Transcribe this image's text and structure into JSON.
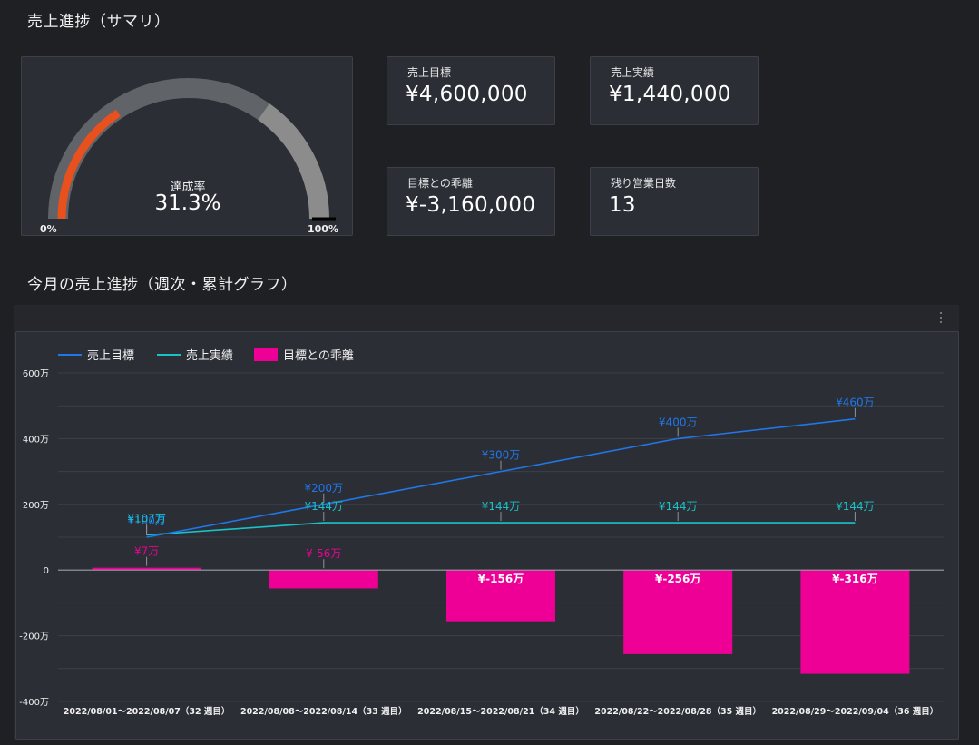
{
  "summary": {
    "title": "売上進捗（サマリ）",
    "gauge": {
      "label": "達成率",
      "value_text": "31.3%",
      "progress": 0.313,
      "min_label": "0%",
      "max_label": "100%"
    },
    "kpis": [
      {
        "label": "売上目標",
        "value": "¥4,600,000"
      },
      {
        "label": "売上実績",
        "value": "¥1,440,000"
      },
      {
        "label": "目標との乖離",
        "value": "¥-3,160,000"
      },
      {
        "label": "残り営業日数",
        "value": "13"
      }
    ]
  },
  "progress_section": {
    "title": "今月の売上進捗（週次・累計グラフ）"
  },
  "colors": {
    "target": "#1f77e8",
    "actual": "#17c3c9",
    "gap": "#ee0096",
    "gauge_fill": "#e8501e",
    "gauge_track1": "#606367",
    "gauge_track2": "#8c8c8c"
  },
  "chart_data": {
    "type": "bar",
    "categories": [
      "2022/08/01～2022/08/07（32 週目）",
      "2022/08/08～2022/08/14（33 週目）",
      "2022/08/15～2022/08/21（34 週目）",
      "2022/08/22～2022/08/28（35 週目）",
      "2022/08/29～2022/09/04（36 週目）"
    ],
    "series": [
      {
        "name": "売上目標",
        "kind": "line",
        "values": [
          100,
          200,
          300,
          400,
          460
        ],
        "labels": [
          "¥100万",
          "¥200万",
          "¥300万",
          "¥400万",
          "¥460万"
        ]
      },
      {
        "name": "売上実績",
        "kind": "line",
        "values": [
          107,
          144,
          144,
          144,
          144
        ],
        "labels": [
          "¥107万",
          "¥144万",
          "¥144万",
          "¥144万",
          "¥144万"
        ]
      },
      {
        "name": "目標との乖離",
        "kind": "bar",
        "values": [
          7,
          -56,
          -156,
          -256,
          -316
        ],
        "labels": [
          "¥7万",
          "¥-56万",
          "¥-156万",
          "¥-256万",
          "¥-316万"
        ]
      }
    ],
    "y_ticks": [
      600,
      400,
      200,
      0,
      -200,
      -400
    ],
    "y_tick_labels": [
      "600万",
      "400万",
      "200万",
      "0",
      "-200万",
      "-400万"
    ],
    "ylim": [
      -400,
      600
    ],
    "legend_position": "top-left",
    "grid": true
  }
}
